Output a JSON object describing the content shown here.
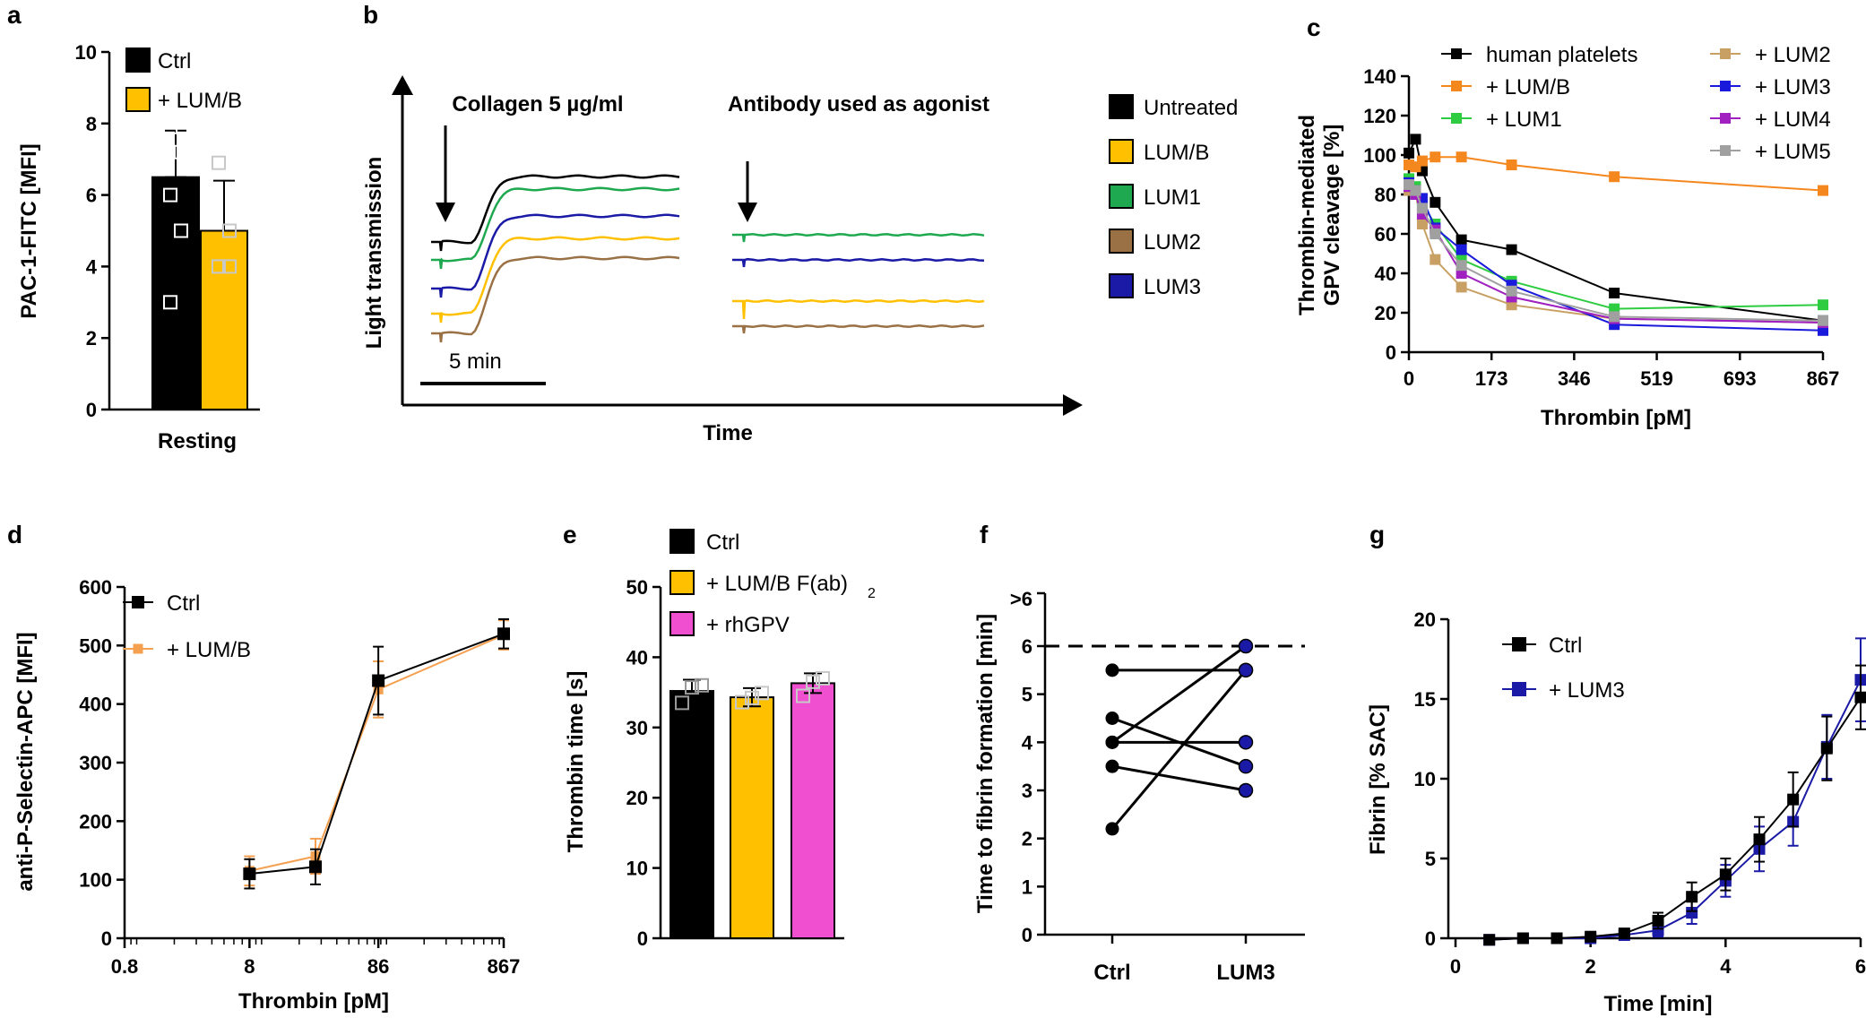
{
  "colors": {
    "black": "#000000",
    "yellow": "#FFC000",
    "green": "#1EA84F",
    "brown": "#9A7045",
    "navy": "#1A1AA6",
    "orange": "#F5871F",
    "tan": "#C8A064",
    "blue": "#1A1ADC",
    "purple": "#A020C0",
    "gray": "#A0A0A0",
    "magenta": "#F050D0",
    "lightorange": "#F5A050",
    "lgreen": "#2ECC40"
  },
  "panels": {
    "a": "a",
    "b": "b",
    "c": "c",
    "d": "d",
    "e": "e",
    "f": "f",
    "g": "g"
  },
  "chart_data": [
    {
      "id": "a",
      "type": "bar",
      "ylabel": "PAC-1-FITC [MFI]",
      "ylim": [
        0,
        10
      ],
      "yticks": [
        "0",
        "2",
        "4",
        "6",
        "8",
        "10"
      ],
      "xlabel": "Resting",
      "series": [
        {
          "name": "Ctrl",
          "value": 6.5,
          "err": 1.3,
          "points": [
            3.0,
            5.0,
            6.0,
            7.2,
            7.9
          ],
          "color": "#000000"
        },
        {
          "name": "+ LUM/B",
          "value": 5.0,
          "err": 1.4,
          "points": [
            4.0,
            4.0,
            4.0,
            5.0,
            6.9
          ],
          "color": "#FFC000"
        }
      ]
    },
    {
      "id": "b",
      "type": "line",
      "ylabel": "Light transmission",
      "xlabel": "Time",
      "scale_label": "5 min",
      "left_title": "Collagen 5 µg/ml",
      "right_title": "Antibody used as agonist",
      "legend": [
        {
          "name": "Untreated",
          "color": "#000000"
        },
        {
          "name": "LUM/B",
          "color": "#FFC000"
        },
        {
          "name": "LUM1",
          "color": "#1EA84F"
        },
        {
          "name": "LUM2",
          "color": "#9A7045"
        },
        {
          "name": "LUM3",
          "color": "#1A1AA6"
        }
      ],
      "collagen_traces": [
        {
          "name": "Untreated",
          "color": "#000000",
          "baseline": 0,
          "plateau": 100
        },
        {
          "name": "LUM1",
          "color": "#1EA84F",
          "baseline": 0,
          "plateau": 100
        },
        {
          "name": "LUM3",
          "color": "#1A1AA6",
          "baseline": 0,
          "plateau": 100
        },
        {
          "name": "LUM/B",
          "color": "#FFC000",
          "baseline": 0,
          "plateau": 100
        },
        {
          "name": "LUM2",
          "color": "#9A7045",
          "baseline": 0,
          "plateau": 100
        }
      ],
      "antibody_traces": [
        {
          "name": "LUM1",
          "color": "#1EA84F"
        },
        {
          "name": "LUM3",
          "color": "#1A1AA6"
        },
        {
          "name": "LUM/B",
          "color": "#FFC000"
        },
        {
          "name": "LUM2",
          "color": "#9A7045"
        }
      ]
    },
    {
      "id": "c",
      "type": "line",
      "ylabel": [
        "Thrombin-mediated",
        "GPV cleavage [%]"
      ],
      "xlabel": "Thrombin [pM]",
      "ylim": [
        0,
        140
      ],
      "yticks": [
        "0",
        "20",
        "40",
        "60",
        "80",
        "100",
        "120",
        "140"
      ],
      "xlim": [
        0,
        867
      ],
      "xticks": [
        "0",
        "173",
        "346",
        "519",
        "693",
        "867"
      ],
      "series": [
        {
          "name": "human platelets",
          "color": "#000000",
          "x": [
            0,
            14,
            28,
            55,
            110,
            215,
            430,
            867
          ],
          "y": [
            101,
            108,
            92,
            76,
            57,
            52,
            30,
            16
          ]
        },
        {
          "name": "+ LUM/B",
          "color": "#F5871F",
          "x": [
            0,
            14,
            28,
            55,
            110,
            215,
            430,
            867
          ],
          "y": [
            95,
            94,
            97,
            99,
            99,
            95,
            89,
            82
          ]
        },
        {
          "name": "+ LUM1",
          "color": "#2ECC40",
          "x": [
            0,
            14,
            28,
            55,
            110,
            215,
            430,
            867
          ],
          "y": [
            88,
            84,
            75,
            65,
            47,
            36,
            22,
            24
          ]
        },
        {
          "name": "+ LUM2",
          "color": "#C8A064",
          "x": [
            0,
            14,
            28,
            55,
            110,
            215,
            430,
            867
          ],
          "y": [
            82,
            80,
            65,
            47,
            33,
            24,
            17,
            15
          ]
        },
        {
          "name": "+ LUM3",
          "color": "#1A1ADC",
          "x": [
            0,
            14,
            28,
            55,
            110,
            215,
            430,
            867
          ],
          "y": [
            86,
            82,
            78,
            63,
            52,
            34,
            14,
            11
          ]
        },
        {
          "name": "+ LUM4",
          "color": "#A020C0",
          "x": [
            0,
            14,
            28,
            55,
            110,
            215,
            430,
            867
          ],
          "y": [
            84,
            80,
            70,
            62,
            40,
            28,
            17,
            15
          ]
        },
        {
          "name": "+ LUM5",
          "color": "#A0A0A0",
          "x": [
            0,
            14,
            28,
            55,
            110,
            215,
            430,
            867
          ],
          "y": [
            85,
            82,
            73,
            60,
            44,
            31,
            18,
            16
          ]
        }
      ]
    },
    {
      "id": "d",
      "type": "line",
      "ylabel": "anti-P-Selectin-APC [MFI]",
      "xlabel": "Thrombin [pM]",
      "xscale": "log",
      "ylim": [
        0,
        600
      ],
      "yticks": [
        "0",
        "100",
        "200",
        "300",
        "400",
        "500",
        "600"
      ],
      "xticks": [
        "0.8",
        "8",
        "86",
        "867"
      ],
      "xtick_values": [
        0.8,
        8,
        86,
        867
      ],
      "series": [
        {
          "name": "Ctrl",
          "color": "#000000",
          "x": [
            8,
            27,
            86,
            867
          ],
          "y": [
            110,
            122,
            440,
            520
          ],
          "err": [
            25,
            30,
            58,
            25
          ]
        },
        {
          "name": "+ LUM/B",
          "color": "#F5A050",
          "x": [
            8,
            27,
            86,
            867
          ],
          "y": [
            115,
            140,
            425,
            518
          ],
          "err": [
            25,
            30,
            48,
            25
          ]
        }
      ]
    },
    {
      "id": "e",
      "type": "bar",
      "ylabel": "Thrombin time [s]",
      "ylim": [
        0,
        50
      ],
      "yticks": [
        "0",
        "10",
        "20",
        "30",
        "40",
        "50"
      ],
      "legend": [
        {
          "name": "Ctrl",
          "color": "#000000"
        },
        {
          "name": "+ LUM/B F(ab)",
          "sub": "2",
          "color": "#FFC000"
        },
        {
          "name": "+ rhGPV",
          "color": "#F050D0"
        }
      ],
      "series": [
        {
          "name": "Ctrl",
          "value": 35.2,
          "err": 1.6,
          "points": [
            33.5,
            35.7,
            36.0
          ],
          "color": "#000000"
        },
        {
          "name": "+ LUM/B F(ab)2",
          "value": 34.3,
          "err": 1.3,
          "points": [
            33.6,
            34.2,
            34.9
          ],
          "color": "#FFC000"
        },
        {
          "name": "+ rhGPV",
          "value": 36.3,
          "err": 1.4,
          "points": [
            34.5,
            36.5,
            37.0
          ],
          "color": "#F050D0"
        }
      ]
    },
    {
      "id": "f",
      "type": "scatter",
      "ylabel": "Time to fibrin formation [min]",
      "categories": [
        "Ctrl",
        "LUM3"
      ],
      "ylim": [
        0,
        6.5
      ],
      "yticks": [
        "0",
        "1",
        "2",
        "3",
        "4",
        "5",
        "6"
      ],
      "ytick_over": ">6",
      "dashed_line": 6,
      "pairs": [
        [
          5.5,
          5.5
        ],
        [
          4.5,
          3.5
        ],
        [
          4.0,
          4.0
        ],
        [
          4.0,
          6.0
        ],
        [
          3.5,
          3.0
        ],
        [
          2.2,
          5.5
        ]
      ]
    },
    {
      "id": "g",
      "type": "line",
      "ylabel": "Fibrin [% SAC]",
      "xlabel": "Time [min]",
      "ylim": [
        0,
        20
      ],
      "yticks": [
        "0",
        "5",
        "10",
        "15",
        "20"
      ],
      "xlim": [
        0,
        6
      ],
      "xticks": [
        "0",
        "2",
        "4",
        "6"
      ],
      "series": [
        {
          "name": "Ctrl",
          "color": "#000000",
          "x": [
            0.5,
            1,
            1.5,
            2,
            2.5,
            3,
            3.5,
            4,
            4.5,
            5,
            5.5,
            6
          ],
          "y": [
            -0.1,
            0,
            0,
            0.1,
            0.3,
            1.1,
            2.6,
            4.0,
            6.2,
            8.7,
            11.9,
            15.1
          ],
          "err": [
            0.2,
            0.2,
            0.2,
            0.2,
            0.3,
            0.5,
            0.9,
            1.0,
            1.4,
            1.7,
            2.0,
            2.0
          ]
        },
        {
          "name": "+ LUM3",
          "color": "#1A1AA6",
          "x": [
            0.5,
            1,
            1.5,
            2,
            2.5,
            3,
            3.5,
            4,
            4.5,
            5,
            5.5,
            6
          ],
          "y": [
            -0.1,
            0,
            0,
            0,
            0.2,
            0.5,
            1.6,
            3.6,
            5.6,
            7.3,
            12.0,
            16.2
          ],
          "err": [
            0.2,
            0.2,
            0.2,
            0.2,
            0.3,
            0.4,
            0.7,
            1.0,
            1.4,
            1.5,
            2.0,
            2.6
          ]
        }
      ]
    }
  ]
}
